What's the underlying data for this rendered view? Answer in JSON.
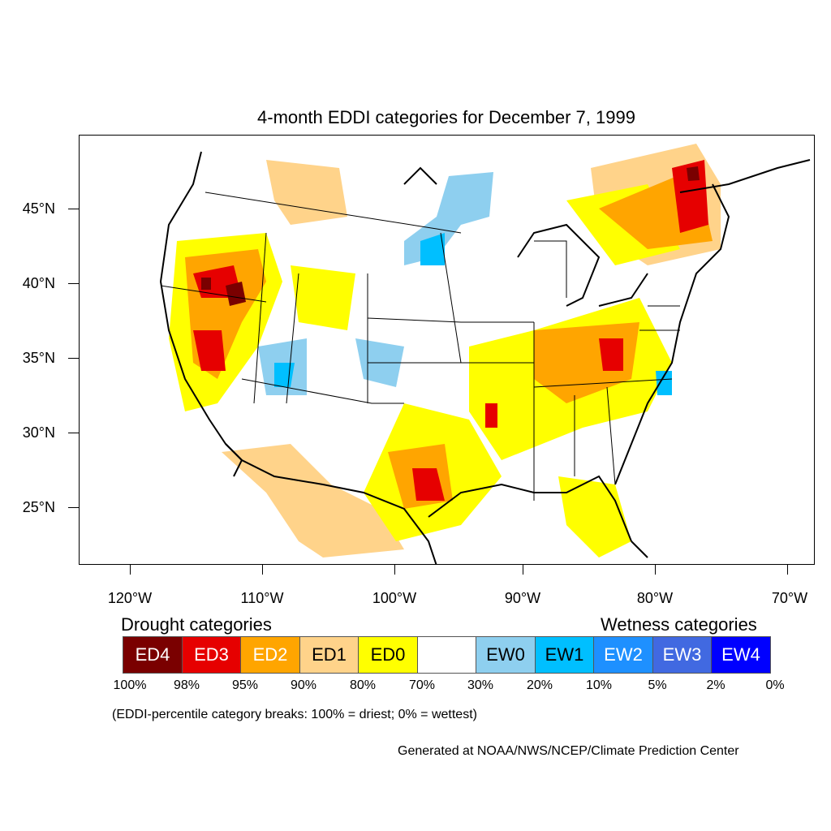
{
  "title": "4-month EDDI categories for December 7, 1999",
  "map": {
    "region": "Contiguous United States",
    "lat_labels": [
      "45°N",
      "40°N",
      "35°N",
      "30°N",
      "25°N"
    ],
    "lon_labels": [
      "120°W",
      "110°W",
      "100°W",
      "90°W",
      "80°W",
      "70°W"
    ]
  },
  "legend": {
    "drought_heading": "Drought categories",
    "wetness_heading": "Wetness categories",
    "categories": [
      {
        "label": "ED4",
        "color": "#7a0000",
        "text_color": "#ffffff"
      },
      {
        "label": "ED3",
        "color": "#e60000",
        "text_color": "#ffffff"
      },
      {
        "label": "ED2",
        "color": "#ffa500",
        "text_color": "#ffffff"
      },
      {
        "label": "ED1",
        "color": "#ffd38a",
        "text_color": "#000000"
      },
      {
        "label": "ED0",
        "color": "#ffff00",
        "text_color": "#000000"
      },
      {
        "label": "",
        "color": "#ffffff",
        "text_color": "#000000"
      },
      {
        "label": "EW0",
        "color": "#8ecfef",
        "text_color": "#000000"
      },
      {
        "label": "EW1",
        "color": "#00bfff",
        "text_color": "#000000"
      },
      {
        "label": "EW2",
        "color": "#1e90ff",
        "text_color": "#ffffff"
      },
      {
        "label": "EW3",
        "color": "#4169e1",
        "text_color": "#ffffff"
      },
      {
        "label": "EW4",
        "color": "#0000ff",
        "text_color": "#ffffff"
      }
    ],
    "breaks": [
      "100%",
      "98%",
      "95%",
      "90%",
      "80%",
      "70%",
      "30%",
      "20%",
      "10%",
      "5%",
      "2%",
      "0%"
    ]
  },
  "note": "(EDDI-percentile category breaks: 100% = driest; 0% = wettest)",
  "credit": "Generated at NOAA/NWS/NCEP/Climate Prediction Center"
}
